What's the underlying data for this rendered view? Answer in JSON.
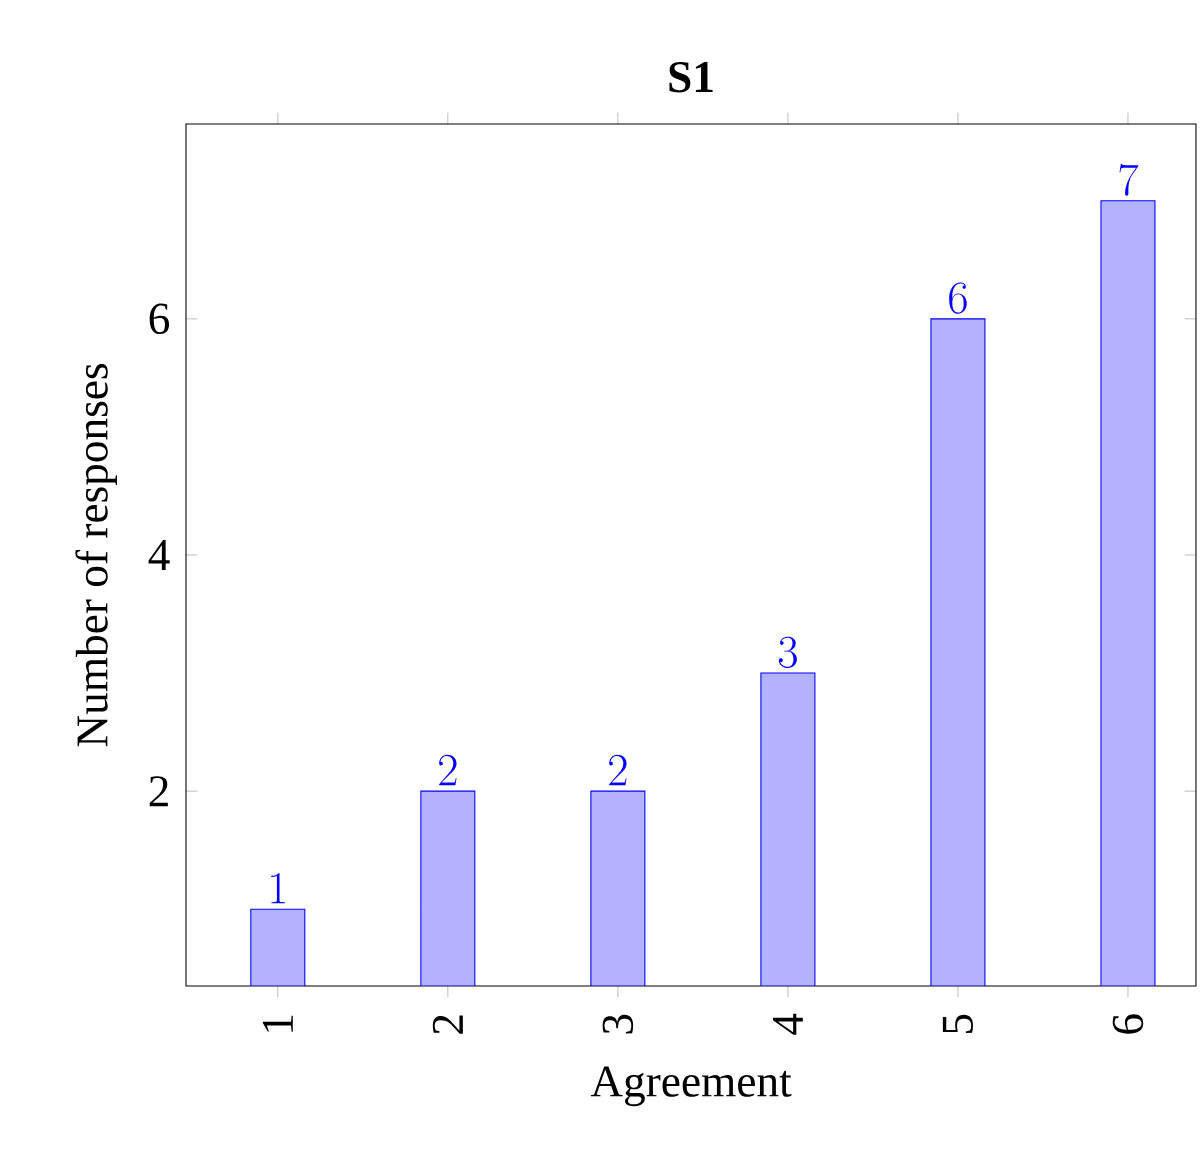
{
  "chart_data": {
    "type": "bar",
    "title": "S1",
    "xlabel": "Agreement",
    "ylabel": "Number of responses",
    "x": [
      1,
      2,
      3,
      4,
      5,
      6
    ],
    "values": [
      1,
      2,
      2,
      3,
      6,
      7
    ],
    "color": "#b2b2ff",
    "data_labels": true,
    "xlim": [
      0.46,
      6.4
    ],
    "ylim": [
      0.35,
      7.65
    ],
    "xticks": [
      1,
      2,
      3,
      4,
      5,
      6
    ],
    "yticks": [
      2,
      4,
      6
    ]
  }
}
